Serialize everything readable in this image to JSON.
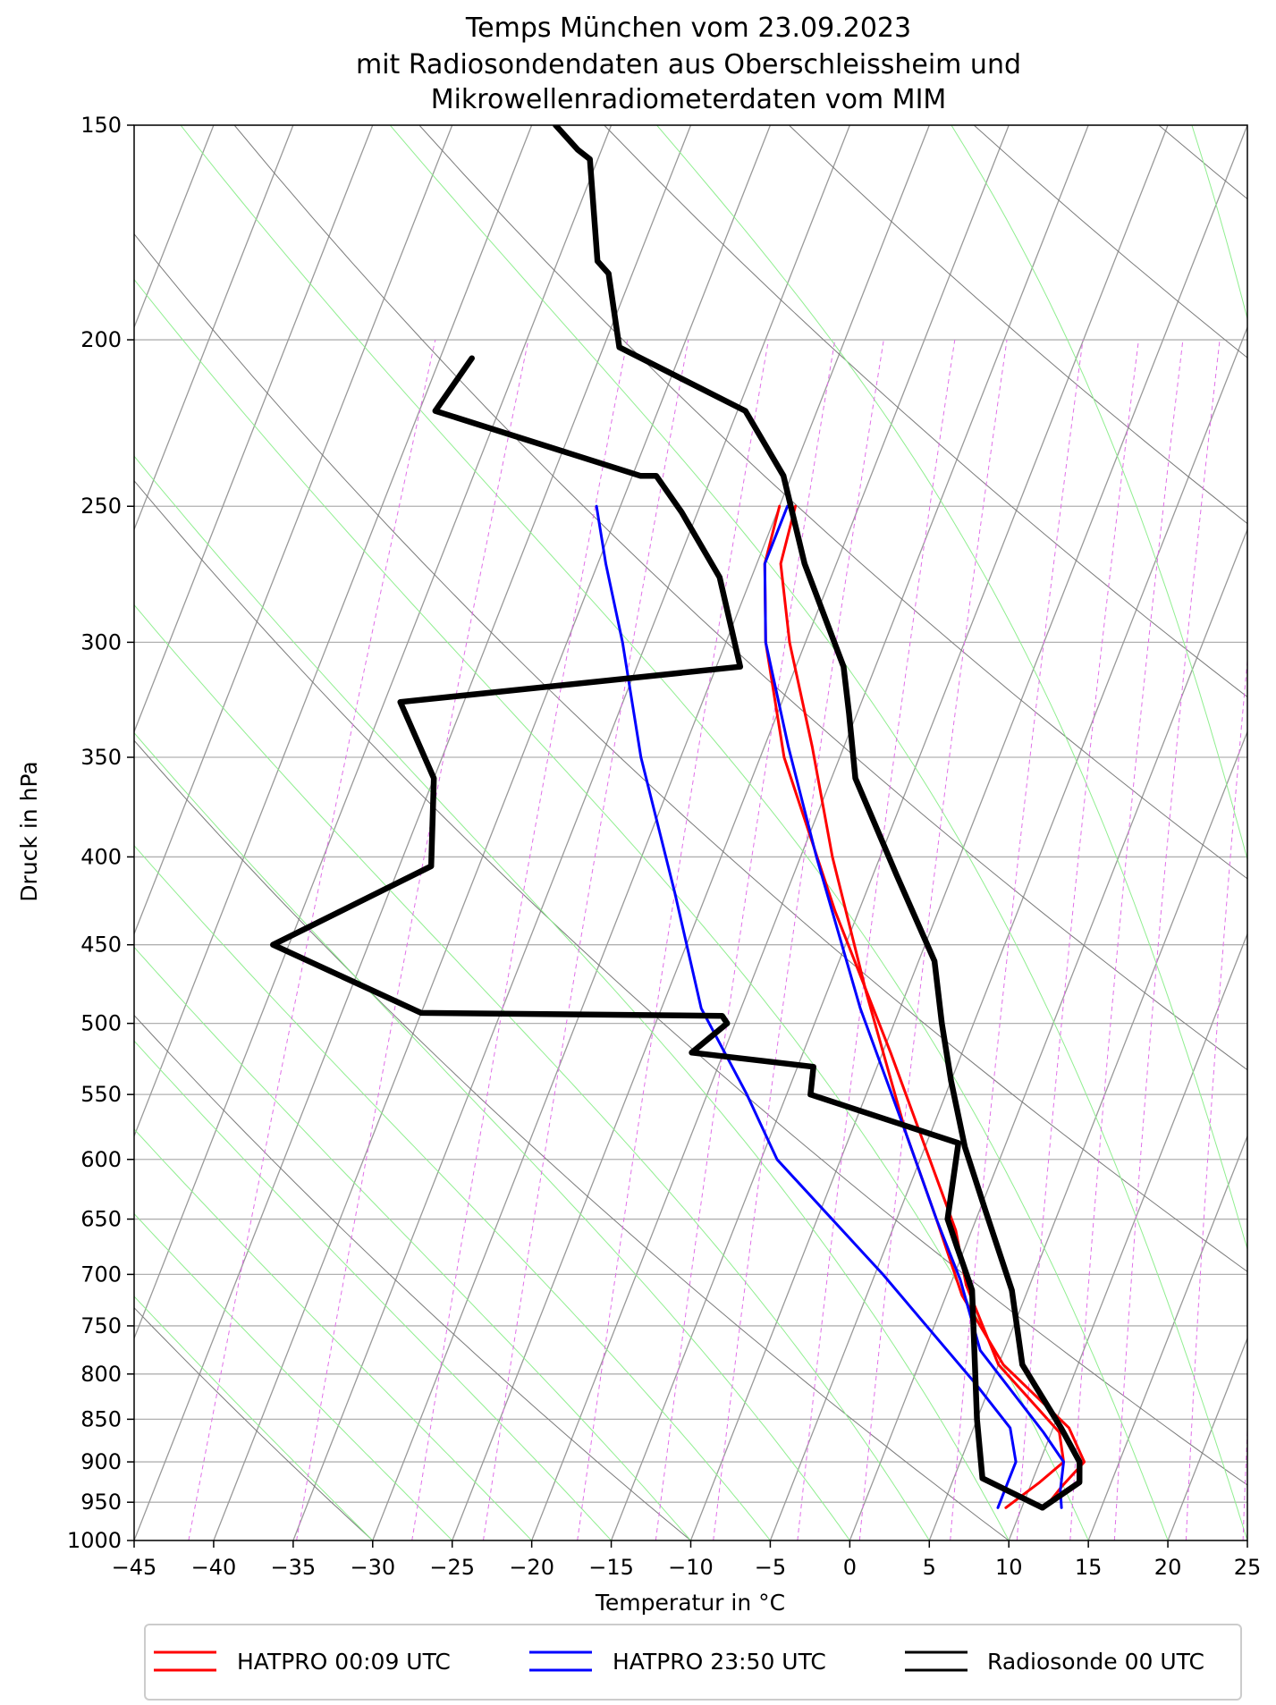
{
  "chart_data": {
    "type": "line",
    "title": [
      "Temps München vom 23.09.2023",
      "mit Radiosondendaten aus Oberschleissheim und",
      "Mikrowellenradiometerdaten vom MIM"
    ],
    "xlabel": "Temperatur in °C",
    "ylabel": "Druck in hPa",
    "xlim": [
      -45,
      25
    ],
    "ylim": [
      1000,
      150
    ],
    "y_scale": "log",
    "skew_t": true,
    "x_ticks": [
      -45,
      -40,
      -35,
      -30,
      -25,
      -20,
      -15,
      -10,
      -5,
      0,
      5,
      10,
      15,
      20,
      25
    ],
    "x_tick_labels": [
      "−45",
      "−40",
      "−35",
      "−30",
      "−25",
      "−20",
      "−15",
      "−10",
      "−5",
      "0",
      "5",
      "10",
      "15",
      "20",
      "25"
    ],
    "y_ticks": [
      1000,
      950,
      900,
      850,
      800,
      750,
      700,
      650,
      600,
      550,
      500,
      450,
      400,
      350,
      300,
      250,
      200,
      150
    ],
    "grid": true,
    "legend_position": "bottom",
    "colors": {
      "hatpro_0009": "#ff0000",
      "hatpro_2350": "#0000ff",
      "radiosonde": "#000000",
      "isotherm": "#999999",
      "dry_adiabat": "#7a7a7a",
      "moist_adiabat": "#90ee90",
      "mixing_ratio": "#e070e8"
    },
    "series": [
      {
        "name": "HATPRO 00:09 UTC",
        "role": "temperature",
        "color": "#ff0000",
        "points": [
          [
            9.0,
            957
          ],
          [
            10.5,
            925
          ],
          [
            11.5,
            900
          ],
          [
            10.5,
            865
          ],
          [
            5.0,
            790
          ],
          [
            1.0,
            710
          ],
          [
            -1.0,
            660
          ],
          [
            -5.0,
            590
          ],
          [
            -9.5,
            520
          ],
          [
            -16.5,
            430
          ],
          [
            -23.5,
            350
          ],
          [
            -27.5,
            300
          ],
          [
            -29.5,
            270
          ],
          [
            -30.0,
            250
          ]
        ]
      },
      {
        "name": "HATPRO 00:09 UTC",
        "role": "dewpoint",
        "color": "#ff0000",
        "points": [
          [
            11.5,
            955
          ],
          [
            12.0,
            930
          ],
          [
            12.8,
            900
          ],
          [
            11.0,
            860
          ],
          [
            5.3,
            790
          ],
          [
            1.0,
            720
          ],
          [
            -2.5,
            650
          ],
          [
            -6.5,
            580
          ],
          [
            -12.5,
            480
          ],
          [
            -18.0,
            400
          ],
          [
            -22.0,
            345
          ],
          [
            -26.0,
            300
          ],
          [
            -28.5,
            270
          ],
          [
            -29.0,
            250
          ]
        ]
      },
      {
        "name": "HATPRO 23:50 UTC",
        "role": "temperature",
        "color": "#0000ff",
        "points": [
          [
            8.5,
            957
          ],
          [
            8.5,
            925
          ],
          [
            8.5,
            900
          ],
          [
            7.3,
            860
          ],
          [
            4.0,
            810
          ],
          [
            -4.5,
            700
          ],
          [
            -14.0,
            600
          ],
          [
            -17.5,
            550
          ],
          [
            -22.5,
            490
          ],
          [
            -27.0,
            420
          ],
          [
            -32.5,
            350
          ],
          [
            -36.5,
            300
          ],
          [
            -39.5,
            270
          ],
          [
            -41.5,
            250
          ]
        ]
      },
      {
        "name": "HATPRO 23:50 UTC",
        "role": "dewpoint",
        "color": "#0000ff",
        "points": [
          [
            12.5,
            957
          ],
          [
            12.0,
            935
          ],
          [
            11.5,
            900
          ],
          [
            9.5,
            865
          ],
          [
            3.5,
            775
          ],
          [
            0.5,
            705
          ],
          [
            -2.5,
            650
          ],
          [
            -6.5,
            580
          ],
          [
            -12.5,
            490
          ],
          [
            -19.0,
            400
          ],
          [
            -23.5,
            345
          ],
          [
            -27.5,
            300
          ],
          [
            -29.5,
            270
          ],
          [
            -29.5,
            250
          ]
        ]
      },
      {
        "name": "Radiosonde 00 UTC",
        "role": "temperature",
        "color": "#000000",
        "points": [
          [
            11.3,
            957
          ],
          [
            13.0,
            925
          ],
          [
            12.5,
            900
          ],
          [
            10.5,
            860
          ],
          [
            6.5,
            790
          ],
          [
            4.0,
            715
          ],
          [
            0.5,
            645
          ],
          [
            -2.5,
            590
          ],
          [
            -5.0,
            540
          ],
          [
            -7.0,
            500
          ],
          [
            -9.0,
            460
          ],
          [
            -13.5,
            410
          ],
          [
            -18.5,
            360
          ],
          [
            -20.5,
            330
          ],
          [
            -22.0,
            310
          ],
          [
            -27.0,
            270
          ],
          [
            -30.5,
            240
          ],
          [
            -34.5,
            220
          ],
          [
            -44.0,
            202
          ],
          [
            -46.5,
            183
          ],
          [
            -47.5,
            180
          ],
          [
            -50.5,
            157
          ],
          [
            -51.5,
            155
          ],
          [
            -53.5,
            150
          ]
        ]
      },
      {
        "name": "Radiosonde 00 UTC",
        "role": "dewpoint",
        "color": "#000000",
        "points": [
          [
            11.3,
            957
          ],
          [
            6.8,
            920
          ],
          [
            5.0,
            850
          ],
          [
            1.5,
            715
          ],
          [
            -0.5,
            675
          ],
          [
            -1.8,
            650
          ],
          [
            -3.0,
            587
          ],
          [
            -13.5,
            550
          ],
          [
            -14.0,
            530
          ],
          [
            -22.0,
            520
          ],
          [
            -20.5,
            500
          ],
          [
            -21.0,
            495
          ],
          [
            -40.0,
            493
          ],
          [
            -51.0,
            450
          ],
          [
            -43.0,
            405
          ],
          [
            -45.0,
            360
          ],
          [
            -49.0,
            325
          ],
          [
            -28.5,
            310
          ],
          [
            -32.0,
            275
          ],
          [
            -36.0,
            252
          ],
          [
            -38.5,
            240
          ],
          [
            -39.5,
            240
          ],
          [
            -54.0,
            220
          ],
          [
            -53.0,
            205
          ]
        ]
      }
    ]
  }
}
